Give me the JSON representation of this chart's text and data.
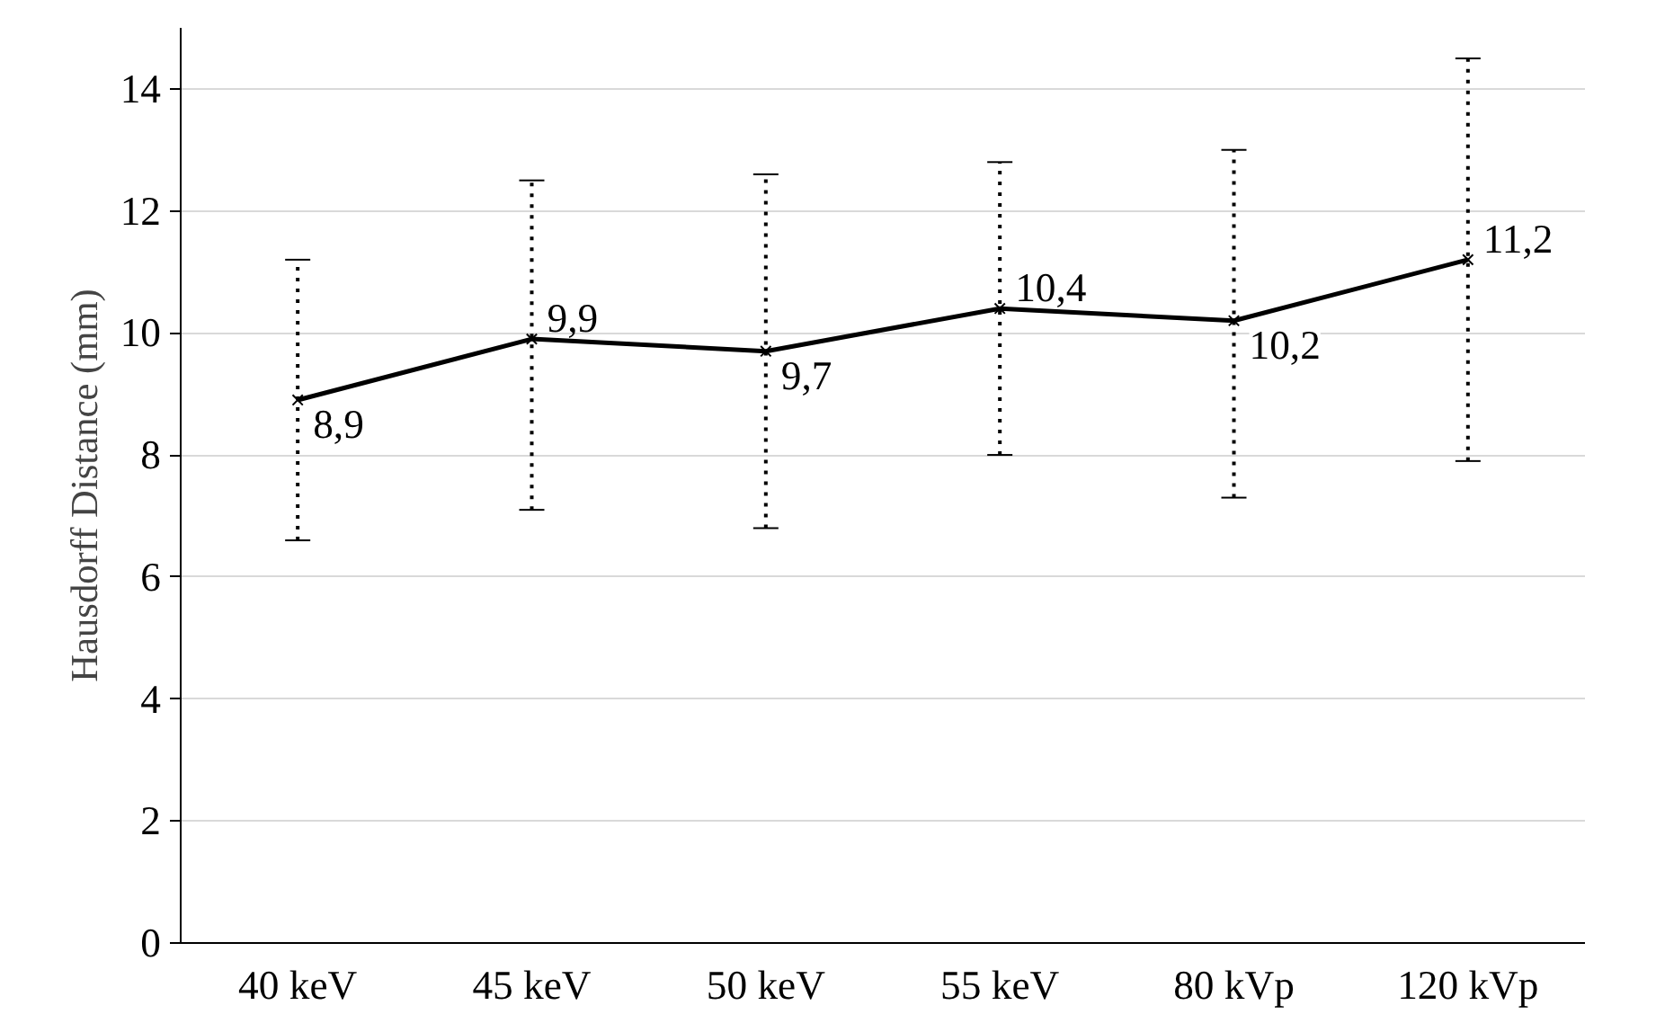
{
  "chart_data": {
    "type": "line",
    "ylabel": "Hausdorff Distance (mm)",
    "categories": [
      "40 keV",
      "45 keV",
      "50 keV",
      "55 keV",
      "80 kVp",
      "120 kVp"
    ],
    "series": [
      {
        "color": "#000000",
        "values": [
          8.9,
          9.9,
          9.7,
          10.4,
          10.2,
          11.2
        ],
        "value_labels": [
          "8,9",
          "9,9",
          "9,7",
          "10,4",
          "10,2",
          "11,2"
        ],
        "errors": [
          [
            6.6,
            11.2
          ],
          [
            7.1,
            12.5
          ],
          [
            6.8,
            12.6
          ],
          [
            8.0,
            12.8
          ],
          [
            7.3,
            13.0
          ],
          [
            7.9,
            14.5
          ]
        ]
      }
    ],
    "ylim": [
      0,
      15
    ],
    "yticks": [
      0,
      2,
      4,
      6,
      8,
      10,
      12,
      14
    ],
    "grid": "y",
    "marker": "cross",
    "line_style": "solid"
  }
}
